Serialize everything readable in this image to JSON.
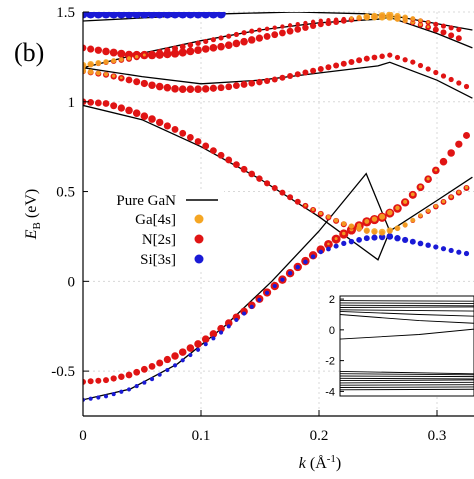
{
  "panel_label": "(b)",
  "colors": {
    "ga4s": "#f5a623",
    "n2s": "#e01414",
    "si3s": "#1a1ad6",
    "pure": "#000000",
    "grid": "#d8d8d8"
  },
  "chart_data": [
    {
      "type": "scatter",
      "title": "",
      "xlabel_main": "k",
      "xlabel_unit": " (Å",
      "xlabel_sup": "-1",
      "xlabel_close": ")",
      "ylabel_main": "E",
      "ylabel_sub": "B",
      "ylabel_unit": " (eV)",
      "xlim": [
        0,
        0.33
      ],
      "ylim": [
        -0.75,
        1.5
      ],
      "xticks": [
        0,
        0.1,
        0.2,
        0.3
      ],
      "xtick_labels": [
        "0",
        "0.1",
        "0.2",
        "0.3"
      ],
      "yticks": [
        -0.5,
        0,
        0.5,
        1,
        1.5
      ],
      "ytick_labels": [
        "-0.5",
        "0",
        "0.5",
        "1",
        "1.5"
      ],
      "grid": true,
      "legend_position": "center-left",
      "legend": [
        {
          "label": "Pure GaN",
          "kind": "line"
        },
        {
          "label": "Ga[4s]",
          "kind": "dot",
          "color_key": "ga4s"
        },
        {
          "label": "N[2s]",
          "kind": "dot",
          "color_key": "n2s"
        },
        {
          "label": "Si[3s]",
          "kind": "dot",
          "color_key": "si3s"
        }
      ],
      "pure_gan_bands": [
        {
          "x": [
            0,
            0.04,
            0.08,
            0.12,
            0.16,
            0.2,
            0.24,
            0.26
          ],
          "y": [
            -0.66,
            -0.6,
            -0.46,
            -0.25,
            0.0,
            0.28,
            0.6,
            0.28
          ]
        },
        {
          "x": [
            0,
            0.05,
            0.1,
            0.15,
            0.2,
            0.25,
            0.26,
            0.3,
            0.33
          ],
          "y": [
            0.98,
            0.9,
            0.75,
            0.57,
            0.36,
            0.12,
            0.28,
            0.45,
            0.58
          ]
        },
        {
          "x": [
            0,
            0.05,
            0.1,
            0.15,
            0.2,
            0.25,
            0.26,
            0.3,
            0.33
          ],
          "y": [
            1.19,
            1.27,
            1.34,
            1.4,
            1.44,
            1.46,
            1.47,
            1.38,
            1.3
          ]
        },
        {
          "x": [
            0,
            0.05,
            0.1,
            0.15,
            0.2,
            0.25,
            0.26,
            0.3,
            0.33
          ],
          "y": [
            1.19,
            1.14,
            1.1,
            1.12,
            1.16,
            1.2,
            1.22,
            1.12,
            1.02
          ]
        },
        {
          "x": [
            0,
            0.06,
            0.12,
            0.18,
            0.24,
            0.27,
            0.33
          ],
          "y": [
            1.45,
            1.47,
            1.49,
            1.5,
            1.49,
            1.47,
            1.4
          ]
        }
      ],
      "projected_bands": [
        {
          "x": [
            0,
            0.02,
            0.04,
            0.06,
            0.08,
            0.1,
            0.12,
            0.14,
            0.16,
            0.18,
            0.2,
            0.22,
            0.24,
            0.255,
            0.27,
            0.29,
            0.31,
            0.33
          ],
          "y": [
            -0.56,
            -0.55,
            -0.52,
            -0.47,
            -0.41,
            -0.34,
            -0.25,
            -0.15,
            -0.04,
            0.07,
            0.17,
            0.26,
            0.33,
            0.36,
            0.42,
            0.55,
            0.7,
            0.85
          ],
          "n2s": [
            0.5,
            0.5,
            0.6,
            0.6,
            0.7,
            0.7,
            0.7,
            0.7,
            0.8,
            0.8,
            0.8,
            0.9,
            0.9,
            0.9,
            0.8,
            0.7,
            0.7,
            0.6
          ],
          "ga4s": [
            0,
            0,
            0,
            0,
            0,
            0,
            0,
            0,
            0,
            0,
            0,
            0.2,
            0.4,
            0.6,
            0.3,
            0.2,
            0,
            0
          ],
          "si3s": [
            0,
            0,
            0,
            0,
            0,
            0,
            0,
            0,
            0,
            0,
            0,
            0,
            0,
            0,
            0,
            0,
            0,
            0
          ]
        },
        {
          "x": [
            0,
            0.02,
            0.04,
            0.06,
            0.08,
            0.1,
            0.12,
            0.14,
            0.16,
            0.18,
            0.2,
            0.22,
            0.24,
            0.26,
            0.28,
            0.3,
            0.32,
            0.33
          ],
          "y": [
            -0.66,
            -0.64,
            -0.6,
            -0.54,
            -0.46,
            -0.37,
            -0.27,
            -0.16,
            -0.04,
            0.07,
            0.16,
            0.21,
            0.24,
            0.25,
            0.22,
            0.19,
            0.16,
            0.15
          ],
          "n2s": [
            0,
            0,
            0,
            0,
            0,
            0,
            0,
            0,
            0,
            0,
            0,
            0,
            0,
            0,
            0,
            0,
            0,
            0
          ],
          "ga4s": [
            0,
            0,
            0,
            0,
            0,
            0,
            0,
            0,
            0,
            0,
            0,
            0,
            0,
            0,
            0,
            0,
            0,
            0
          ],
          "si3s": [
            0.25,
            0.25,
            0.25,
            0.25,
            0.25,
            0.25,
            0.25,
            0.25,
            0.25,
            0.3,
            0.3,
            0.4,
            0.5,
            0.6,
            0.5,
            0.4,
            0.4,
            0.4
          ]
        },
        {
          "x": [
            0,
            0.02,
            0.04,
            0.06,
            0.08,
            0.1,
            0.12,
            0.14,
            0.16,
            0.18,
            0.2,
            0.22,
            0.24,
            0.255,
            0.27,
            0.29,
            0.31,
            0.33
          ],
          "y": [
            1.0,
            0.99,
            0.95,
            0.9,
            0.84,
            0.77,
            0.69,
            0.61,
            0.53,
            0.45,
            0.38,
            0.32,
            0.28,
            0.27,
            0.3,
            0.38,
            0.46,
            0.54
          ],
          "n2s": [
            0.6,
            0.6,
            0.7,
            0.7,
            0.6,
            0.6,
            0.6,
            0.6,
            0.5,
            0.5,
            0.5,
            0.5,
            0.4,
            0.3,
            0.3,
            0.4,
            0.5,
            0.5
          ],
          "ga4s": [
            0,
            0,
            0,
            0,
            0,
            0,
            0,
            0,
            0,
            0,
            0.2,
            0.4,
            0.6,
            0.7,
            0.5,
            0.3,
            0.2,
            0.2
          ],
          "si3s": [
            0.5,
            0.4,
            0.4,
            0.3,
            0,
            0,
            0,
            0,
            0,
            0,
            0,
            0,
            0,
            0,
            0,
            0,
            0,
            0
          ]
        },
        {
          "x": [
            0,
            0.02,
            0.04,
            0.06,
            0.08,
            0.1,
            0.12,
            0.14,
            0.16,
            0.18,
            0.2,
            0.22,
            0.24,
            0.26,
            0.28,
            0.3,
            0.32,
            0.33
          ],
          "y": [
            1.17,
            1.15,
            1.12,
            1.09,
            1.07,
            1.07,
            1.08,
            1.1,
            1.12,
            1.15,
            1.18,
            1.21,
            1.24,
            1.26,
            1.22,
            1.16,
            1.1,
            1.07
          ],
          "n2s": [
            0.5,
            0.5,
            0.6,
            0.7,
            0.7,
            0.7,
            0.6,
            0.6,
            0.5,
            0.5,
            0.5,
            0.5,
            0.5,
            0.4,
            0.4,
            0.4,
            0.4,
            0.4
          ],
          "ga4s": [
            0.6,
            0.3,
            0,
            0,
            0,
            0,
            0,
            0,
            0,
            0,
            0,
            0,
            0,
            0,
            0,
            0,
            0,
            0
          ],
          "si3s": [
            0,
            0,
            0,
            0,
            0,
            0,
            0,
            0,
            0,
            0,
            0,
            0,
            0,
            0,
            0,
            0,
            0,
            0
          ]
        },
        {
          "x": [
            0,
            0.02,
            0.04,
            0.06,
            0.08,
            0.1,
            0.12,
            0.14,
            0.16,
            0.18,
            0.2,
            0.22,
            0.24,
            0.26,
            0.28,
            0.3,
            0.32
          ],
          "y": [
            1.3,
            1.28,
            1.26,
            1.26,
            1.27,
            1.29,
            1.31,
            1.34,
            1.37,
            1.4,
            1.43,
            1.45,
            1.47,
            1.47,
            1.44,
            1.4,
            1.35
          ],
          "n2s": [
            0.6,
            0.7,
            0.8,
            0.8,
            0.8,
            0.7,
            0.7,
            0.7,
            0.6,
            0.6,
            0.5,
            0.5,
            0.4,
            0.3,
            0.4,
            0.5,
            0.5
          ],
          "ga4s": [
            0,
            0,
            0,
            0,
            0,
            0,
            0,
            0,
            0,
            0,
            0,
            0,
            0.7,
            0.8,
            0.3,
            0,
            0
          ],
          "si3s": [
            0,
            0,
            0,
            0,
            0,
            0,
            0,
            0,
            0,
            0,
            0,
            0,
            0,
            0,
            0,
            0,
            0
          ]
        },
        {
          "x": [
            0,
            0.02,
            0.04,
            0.06,
            0.08,
            0.1,
            0.12,
            0.14,
            0.16,
            0.18,
            0.2,
            0.22,
            0.24,
            0.26,
            0.28,
            0.3,
            0.32
          ],
          "y": [
            1.2,
            1.22,
            1.24,
            1.27,
            1.3,
            1.33,
            1.36,
            1.39,
            1.41,
            1.43,
            1.45,
            1.46,
            1.47,
            1.48,
            1.46,
            1.43,
            1.4
          ],
          "n2s": [
            0.4,
            0.4,
            0.5,
            0.5,
            0.5,
            0.4,
            0.4,
            0.4,
            0.3,
            0.3,
            0.3,
            0.3,
            0.3,
            0.3,
            0.4,
            0.4,
            0.4
          ],
          "ga4s": [
            0.7,
            0.5,
            0.3,
            0,
            0,
            0,
            0,
            0,
            0,
            0,
            0,
            0,
            0.6,
            0.8,
            0.4,
            0,
            0
          ],
          "si3s": [
            0,
            0,
            0,
            0,
            0,
            0,
            0,
            0,
            0,
            0,
            0,
            0,
            0,
            0,
            0,
            0,
            0
          ]
        },
        {
          "x": [
            0,
            0.01,
            0.02,
            0.03,
            0.04,
            0.05,
            0.06,
            0.07,
            0.08,
            0.09,
            0.1,
            0.11,
            0.12
          ],
          "y": [
            1.49,
            1.49,
            1.49,
            1.49,
            1.49,
            1.49,
            1.49,
            1.49,
            1.49,
            1.49,
            1.49,
            1.49,
            1.49
          ],
          "n2s": [
            0,
            0,
            0,
            0,
            0,
            0,
            0,
            0,
            0,
            0,
            0,
            0,
            0
          ],
          "ga4s": [
            0,
            0,
            0,
            0,
            0,
            0,
            0,
            0,
            0,
            0,
            0,
            0,
            0
          ],
          "si3s": [
            1.0,
            1.0,
            1.0,
            1.0,
            1.0,
            1.0,
            1.0,
            1.0,
            1.0,
            1.0,
            1.0,
            1.0,
            1.0
          ]
        }
      ]
    },
    {
      "type": "line",
      "title": "",
      "xlim": [
        0,
        0.33
      ],
      "ylim": [
        -4.3,
        2.2
      ],
      "yticks": [
        2,
        0,
        -2,
        -4
      ],
      "ytick_labels": [
        "2",
        "0",
        "-2",
        "-4"
      ],
      "series": [
        {
          "x": [
            0,
            0.33
          ],
          "y": [
            1.9,
            1.85
          ]
        },
        {
          "x": [
            0,
            0.33
          ],
          "y": [
            1.75,
            1.7
          ]
        },
        {
          "x": [
            0,
            0.33
          ],
          "y": [
            1.6,
            1.55
          ]
        },
        {
          "x": [
            0,
            0.33
          ],
          "y": [
            1.45,
            1.5
          ]
        },
        {
          "x": [
            0,
            0.33
          ],
          "y": [
            1.3,
            1.2
          ]
        },
        {
          "x": [
            0,
            0.15,
            0.33
          ],
          "y": [
            1.2,
            1.0,
            0.8
          ]
        },
        {
          "x": [
            0,
            0.15,
            0.33
          ],
          "y": [
            1.0,
            0.6,
            0.3
          ]
        },
        {
          "x": [
            0,
            0.15,
            0.33
          ],
          "y": [
            -0.6,
            -0.3,
            0.3
          ]
        },
        {
          "x": [
            0,
            0.33
          ],
          "y": [
            -2.7,
            -2.9
          ]
        },
        {
          "x": [
            0,
            0.33
          ],
          "y": [
            -2.85,
            -2.95
          ]
        },
        {
          "x": [
            0,
            0.33
          ],
          "y": [
            -3.0,
            -3.05
          ]
        },
        {
          "x": [
            0,
            0.33
          ],
          "y": [
            -3.15,
            -3.2
          ]
        },
        {
          "x": [
            0,
            0.33
          ],
          "y": [
            -3.3,
            -3.25
          ]
        },
        {
          "x": [
            0,
            0.33
          ],
          "y": [
            -3.45,
            -3.4
          ]
        },
        {
          "x": [
            0,
            0.33
          ],
          "y": [
            -3.6,
            -3.55
          ]
        },
        {
          "x": [
            0,
            0.33
          ],
          "y": [
            -3.75,
            -3.7
          ]
        },
        {
          "x": [
            0,
            0.33
          ],
          "y": [
            -3.9,
            -3.85
          ]
        }
      ]
    }
  ]
}
